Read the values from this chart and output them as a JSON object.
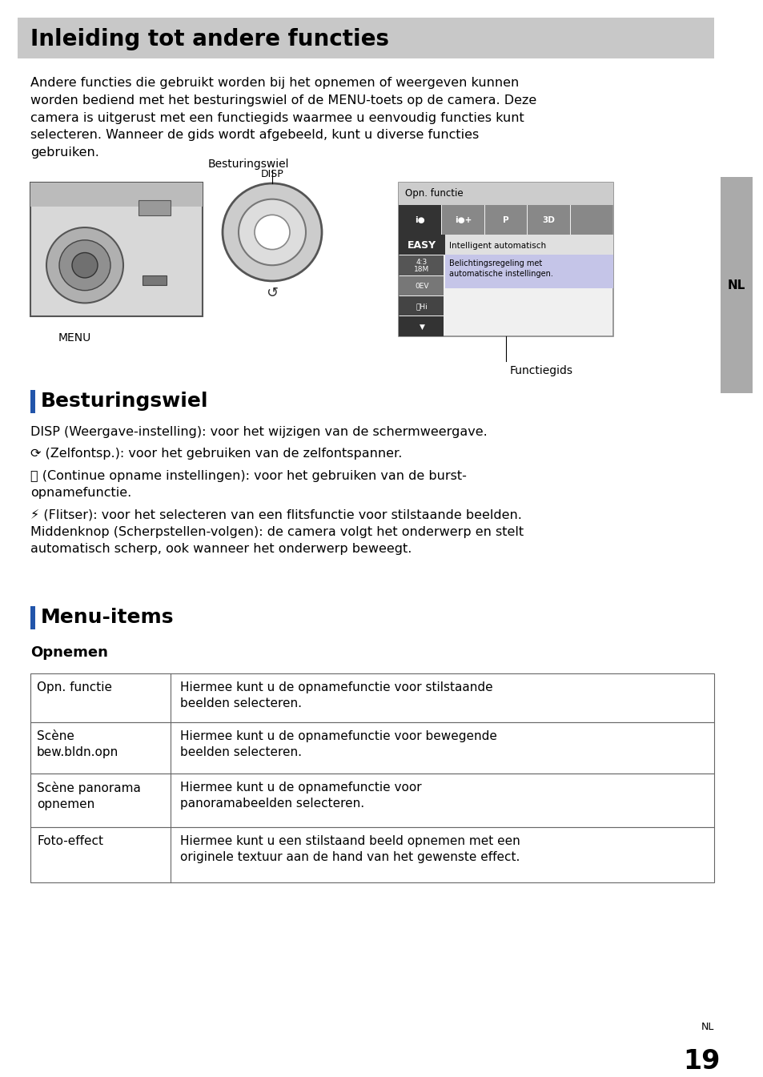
{
  "title": "Inleiding tot andere functies",
  "title_bg": "#c8c8c8",
  "page_bg": "#ffffff",
  "intro_text": "Andere functies die gebruikt worden bij het opnemen of weergeven kunnen\nworden bediend met het besturingswiel of de MENU-toets op de camera. Deze\ncamera is uitgerust met een functiegids waarmee u eenvoudig functies kunt\nselecteren. Wanneer de gids wordt afgebeeld, kunt u diverse functies\ngebruiken.",
  "besturingswiel_label": "Besturingswiel",
  "menu_label": "MENU",
  "functiegids_label": "Functiegids",
  "section1_title": "Besturingswiel",
  "section1_bar_color": "#2255aa",
  "section1_lines": [
    "DISP (Weergave-instelling): voor het wijzigen van de schermweergave.",
    "⟳ (Zelfontsp.): voor het gebruiken van de zelfontspanner.",
    "⎙ (Continue opname instellingen): voor het gebruiken van de burst-\nopnamefunctie.",
    "⚡ (Flitser): voor het selecteren van een flitsfunctie voor stilstaande beelden.\nMiddenknop (Scherpstellen-volgen): de camera volgt het onderwerp en stelt\nautomatisch scherp, ook wanneer het onderwerp beweegt."
  ],
  "section2_title": "Menu-items",
  "section2_bar_color": "#2255aa",
  "subsection_title": "Opnemen",
  "table_rows": [
    [
      "Opn. functie",
      "Hiermee kunt u de opnamefunctie voor stilstaande\nbeelden selecteren."
    ],
    [
      "Scène\nbew.bldn.opn",
      "Hiermee kunt u de opnamefunctie voor bewegende\nbeelden selecteren."
    ],
    [
      "Scène panorama\nopnemen",
      "Hiermee kunt u de opnamefunctie voor\npanoramabeelden selecteren."
    ],
    [
      "Foto-effect",
      "Hiermee kunt u een stilstaand beeld opnemen met een\noriginele textuur aan de hand van het gewenste effect."
    ]
  ],
  "nl_label": "NL",
  "page_number": "19",
  "sidebar_color": "#aaaaaa"
}
